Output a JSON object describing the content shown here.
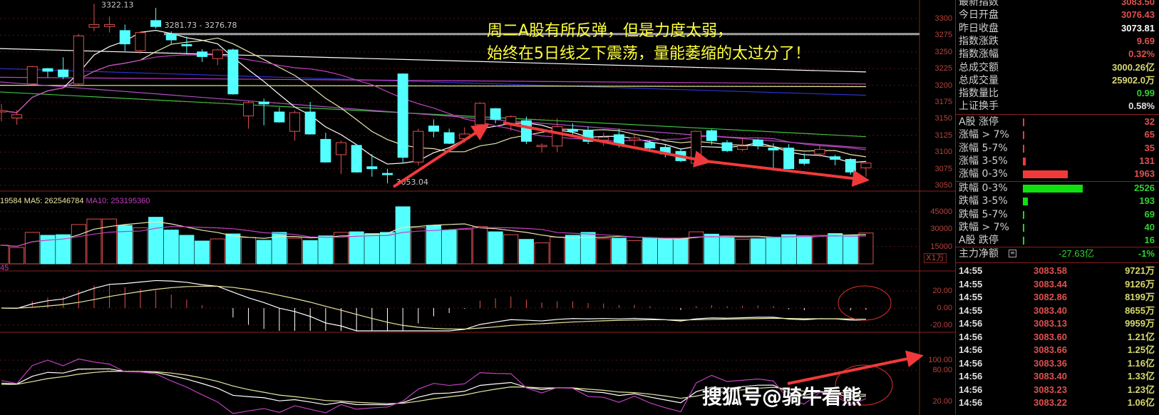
{
  "annotation": {
    "line1": "周二A股有所反弹，但是力度太弱，",
    "line2": "始终在5日线之下震荡，量能萎缩的太过分了！"
  },
  "watermark": "搜狐号@骑牛看熊",
  "price_labels": {
    "high": "3322.13",
    "gap": "3281.73 - 3276.78",
    "low": "3053.04"
  },
  "volume_header": {
    "vol": "19584",
    "ma5": "MA5: 262546784",
    "ma10": "MA10: 253195360"
  },
  "macd_header": "45",
  "volume_unit": "X1万",
  "axes": {
    "price": [
      "3300",
      "3275",
      "3250",
      "3225",
      "3200",
      "3175",
      "3150",
      "3125",
      "3100",
      "3075",
      "3050"
    ],
    "volume": [
      "45000",
      "30000",
      "15000"
    ],
    "macd": [
      "20.00",
      "0.00",
      "-20.00"
    ],
    "kdj": [
      "100.00",
      "80.00",
      "20.00"
    ]
  },
  "quote": [
    {
      "label": "最新指数",
      "value": "3083.50",
      "color": "#e05050"
    },
    {
      "label": "今日开盘",
      "value": "3076.43",
      "color": "#e05050"
    },
    {
      "label": "昨日收盘",
      "value": "3073.81",
      "color": "#ffffff"
    },
    {
      "label": "指数涨跌",
      "value": "9.69",
      "color": "#e05050"
    },
    {
      "label": "指数涨幅",
      "value": "0.32%",
      "color": "#e05050"
    },
    {
      "label": "总成交额",
      "value": "3000.26亿",
      "color": "#d8d870"
    },
    {
      "label": "总成交量",
      "value": "25902.0万",
      "color": "#d8d870"
    },
    {
      "label": "指数量比",
      "value": "0.99",
      "color": "#30d030"
    },
    {
      "label": "上证换手",
      "value": "0.58%",
      "color": "#e0e0e0"
    }
  ],
  "breadth_up": [
    {
      "label": "A股 涨停",
      "value": "32",
      "fraction": 0.005
    },
    {
      "label": "涨幅 > 7%",
      "value": "65",
      "fraction": 0.02
    },
    {
      "label": "涨幅 5-7%",
      "value": "35",
      "fraction": 0.005
    },
    {
      "label": "涨幅 3-5%",
      "value": "131",
      "fraction": 0.05
    },
    {
      "label": "涨幅 0-3%",
      "value": "1963",
      "fraction": 0.75
    }
  ],
  "breadth_down": [
    {
      "label": "跌幅 0-3%",
      "value": "2526",
      "fraction": 1.0
    },
    {
      "label": "跌幅 3-5%",
      "value": "193",
      "fraction": 0.08
    },
    {
      "label": "跌幅 5-7%",
      "value": "69",
      "fraction": 0.02
    },
    {
      "label": "跌幅 > 7%",
      "value": "40",
      "fraction": 0.005
    },
    {
      "label": "A股 跌停",
      "value": "16",
      "fraction": 0.005
    }
  ],
  "colors": {
    "up": "#e05050",
    "down": "#54ffff",
    "bar_up": "#f03a3a",
    "bar_down": "#10e010"
  },
  "main_force": {
    "label": "主力净额",
    "value": "-27.63亿",
    "pct": "-1%"
  },
  "ticks": [
    {
      "time": "14:55",
      "price": "3083.58",
      "amount": "9721万"
    },
    {
      "time": "14:55",
      "price": "3083.44",
      "amount": "9126万"
    },
    {
      "time": "14:55",
      "price": "3082.86",
      "amount": "8199万"
    },
    {
      "time": "14:55",
      "price": "3083.40",
      "amount": "8655万"
    },
    {
      "time": "14:56",
      "price": "3083.13",
      "amount": "9959万"
    },
    {
      "time": "14:56",
      "price": "3083.60",
      "amount": "1.21亿"
    },
    {
      "time": "14:56",
      "price": "3083.66",
      "amount": "1.25亿"
    },
    {
      "time": "14:56",
      "price": "3083.36",
      "amount": "1.16亿"
    },
    {
      "time": "14:56",
      "price": "3083.40",
      "amount": "1.33亿"
    },
    {
      "time": "14:56",
      "price": "3083.23",
      "amount": "1.23亿"
    },
    {
      "time": "14:56",
      "price": "3083.22",
      "amount": "1.06亿"
    }
  ],
  "chart_data": {
    "type": "candlestick",
    "ylim": [
      3040,
      3330
    ],
    "ohlc": [
      [
        3160,
        3162,
        3172,
        3146
      ],
      [
        3151,
        3156,
        3163,
        3141
      ],
      [
        3202,
        3228,
        3229,
        3200
      ],
      [
        3225,
        3221,
        3226,
        3212
      ],
      [
        3223,
        3213,
        3242,
        3209
      ],
      [
        3202,
        3274,
        3277,
        3200
      ],
      [
        3287,
        3291,
        3322.13,
        3281
      ],
      [
        3288,
        3291,
        3303,
        3279
      ],
      [
        3282,
        3262,
        3291,
        3251
      ],
      [
        3252,
        3279,
        3281,
        3247
      ],
      [
        3297,
        3288,
        3316,
        3285
      ],
      [
        3277,
        3268,
        3281,
        3262
      ],
      [
        3261,
        3259,
        3273,
        3248
      ],
      [
        3250,
        3243,
        3254,
        3235
      ],
      [
        3240,
        3253,
        3255,
        3230
      ],
      [
        3253,
        3187,
        3255,
        3186
      ],
      [
        3154,
        3174,
        3176,
        3135
      ],
      [
        3175,
        3172,
        3180,
        3140
      ],
      [
        3160,
        3145,
        3167,
        3144
      ],
      [
        3131,
        3159,
        3162,
        3117
      ],
      [
        3160,
        3127,
        3175,
        3126
      ],
      [
        3119,
        3085,
        3129,
        3084
      ],
      [
        3096,
        3114,
        3117,
        3067
      ],
      [
        3110,
        3070,
        3112,
        3069
      ],
      [
        3078,
        3075,
        3097,
        3063
      ],
      [
        3068,
        3066,
        3075,
        3053.04
      ],
      [
        3217,
        3092,
        3218,
        3083
      ],
      [
        3085,
        3131,
        3135,
        3080
      ],
      [
        3139,
        3131,
        3149,
        3122
      ],
      [
        3129,
        3113,
        3135,
        3112
      ],
      [
        3120,
        3127,
        3137,
        3114
      ],
      [
        3141,
        3173,
        3174,
        3139
      ],
      [
        3165,
        3149,
        3166,
        3143
      ],
      [
        3143,
        3153,
        3155,
        3132
      ],
      [
        3147,
        3116,
        3153,
        3112
      ],
      [
        3108,
        3110,
        3113,
        3099
      ],
      [
        3109,
        3138,
        3150,
        3100
      ],
      [
        3134,
        3131,
        3143,
        3124
      ],
      [
        3132,
        3116,
        3138,
        3112
      ],
      [
        3118,
        3122,
        3129,
        3109
      ],
      [
        3126,
        3111,
        3135,
        3107
      ],
      [
        3118,
        3121,
        3128,
        3110
      ],
      [
        3114,
        3106,
        3118,
        3100
      ],
      [
        3107,
        3097,
        3111,
        3092
      ],
      [
        3101,
        3087,
        3106,
        3085
      ],
      [
        3083,
        3131,
        3132,
        3080
      ],
      [
        3132,
        3117,
        3134,
        3111
      ],
      [
        3114,
        3102,
        3118,
        3100
      ],
      [
        3104,
        3109,
        3121,
        3101
      ],
      [
        3118,
        3110,
        3120,
        3104
      ],
      [
        3106,
        3103,
        3113,
        3072
      ],
      [
        3106,
        3075,
        3112,
        3074
      ],
      [
        3089,
        3083,
        3098,
        3080
      ],
      [
        3097,
        3104,
        3110,
        3093
      ],
      [
        3093,
        3089,
        3096,
        3080
      ],
      [
        3089,
        3070,
        3091,
        3066
      ],
      [
        3076.43,
        3083.5,
        3085,
        3063
      ]
    ],
    "volume": [
      16000,
      14000,
      27000,
      24500,
      25000,
      33700,
      38500,
      38500,
      33000,
      31000,
      40000,
      29000,
      24500,
      19600,
      21400,
      25700,
      22600,
      20200,
      27000,
      22000,
      20000,
      24000,
      27000,
      27500,
      26000,
      27000,
      49000,
      31000,
      33000,
      29000,
      29500,
      32000,
      27500,
      25000,
      21000,
      18000,
      23000,
      24500,
      27000,
      21500,
      22000,
      20000,
      22500,
      21500,
      21500,
      27500,
      25500,
      23000,
      21000,
      21500,
      23000,
      25000,
      24000,
      24500,
      26000,
      24500,
      26500
    ],
    "volume_ylim": [
      0,
      52000
    ],
    "long_ma": [
      {
        "color": "#ffffff",
        "start": 3255,
        "end": 3220
      },
      {
        "color": "#3030d0",
        "start": 3225,
        "end": 3185
      },
      {
        "color": "#c040c0",
        "start": 3212,
        "end": 3202
      },
      {
        "color": "#e8e890",
        "start": 3200,
        "end": 3198
      },
      {
        "color": "#40c040",
        "start": 3190,
        "end": 3123
      },
      {
        "color": "#b050c0",
        "start": 3205,
        "end": 3106
      }
    ],
    "resistance_line": 3276.78
  }
}
